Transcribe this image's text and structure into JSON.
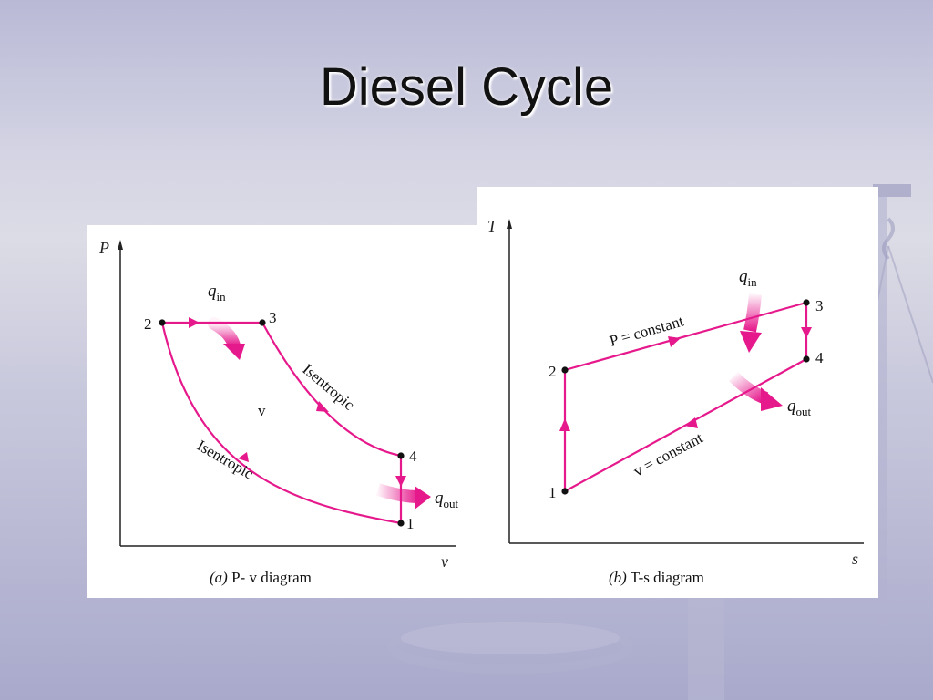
{
  "slide": {
    "title": "Diesel Cycle"
  },
  "colors": {
    "accent": "#e6198c",
    "axis": "#222222",
    "background": "#c4c4dc"
  },
  "diagram_a": {
    "y_axis_label": "P",
    "x_axis_label": "v",
    "center_label": "v",
    "points": {
      "p1": "1",
      "p2": "2",
      "p3": "3",
      "p4": "4"
    },
    "curve_label_upper": "Isentropic",
    "curve_label_lower": "Isentropic",
    "q_in": {
      "symbol": "q",
      "subscript": "in"
    },
    "q_out": {
      "symbol": "q",
      "subscript": "out"
    },
    "caption": {
      "letter": "(a)",
      "text": " P- v diagram"
    }
  },
  "diagram_b": {
    "y_axis_label": "T",
    "x_axis_label": "s",
    "points": {
      "p1": "1",
      "p2": "2",
      "p3": "3",
      "p4": "4"
    },
    "upper_line_label": "P = constant",
    "lower_line_label": "v = constant",
    "q_in": {
      "symbol": "q",
      "subscript": "in"
    },
    "q_out": {
      "symbol": "q",
      "subscript": "out"
    },
    "caption": {
      "letter": "(b)",
      "text": " T-s diagram"
    }
  }
}
